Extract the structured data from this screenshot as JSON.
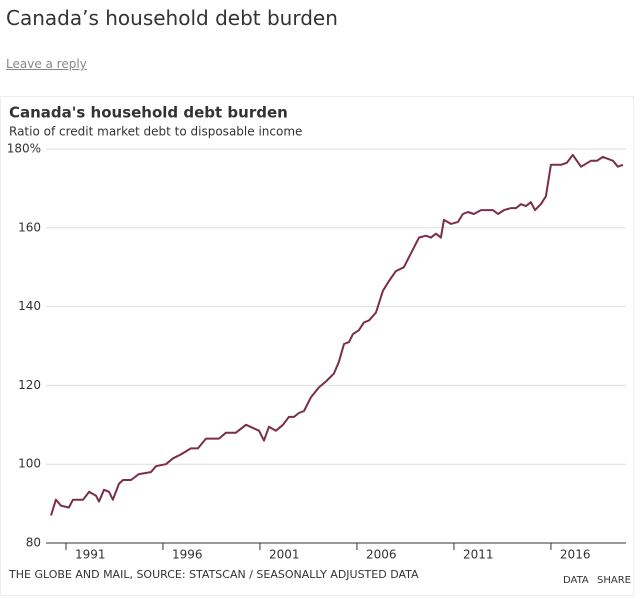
{
  "page": {
    "title": "Canada’s household debt burden",
    "link": "Leave a reply"
  },
  "chart_data": {
    "type": "line",
    "title": "Canada's household debt burden",
    "subtitle": "Ratio of credit market debt to disposable income",
    "source": "THE GLOBE AND MAIL, SOURCE: STATSCAN / SEASONALLY ADJUSTED DATA",
    "buttons": [
      "DATA",
      "SHARE"
    ],
    "x": [
      1990.23,
      1990.48,
      1990.74,
      1991.15,
      1991.36,
      1991.88,
      1992.19,
      1992.55,
      1992.7,
      1992.96,
      1993.22,
      1993.42,
      1993.73,
      1993.94,
      1994.35,
      1994.76,
      1995.38,
      1995.64,
      1996.15,
      1996.52,
      1996.93,
      1997.44,
      1997.8,
      1998.22,
      1998.63,
      1998.89,
      1999.25,
      1999.76,
      2000.28,
      2000.95,
      2001.21,
      2001.46,
      2001.82,
      2002.19,
      2002.49,
      2002.75,
      2003.01,
      2003.27,
      2003.63,
      2004.04,
      2004.4,
      2004.81,
      2005.07,
      2005.33,
      2005.59,
      2005.79,
      2006.1,
      2006.36,
      2006.62,
      2006.98,
      2007.34,
      2007.65,
      2008.01,
      2008.42,
      2008.78,
      2009.2,
      2009.56,
      2009.81,
      2010.07,
      2010.33,
      2010.48,
      2010.85,
      2011.21,
      2011.46,
      2011.72,
      2012.03,
      2012.39,
      2012.75,
      2013.01,
      2013.27,
      2013.58,
      2013.94,
      2014.2,
      2014.45,
      2014.71,
      2014.97,
      2015.18,
      2015.48,
      2015.74,
      2016.0,
      2016.52,
      2016.82,
      2017.13,
      2017.55,
      2018.06,
      2018.37,
      2018.68,
      2019.2,
      2019.45,
      2019.71
    ],
    "series": [
      {
        "name": "Debt to disposable income",
        "color": "#7b2d4a",
        "values": [
          87,
          91,
          89.5,
          89,
          91,
          91,
          93,
          92,
          90.5,
          93.5,
          93,
          91,
          95,
          96,
          96,
          97.5,
          98,
          99.5,
          100,
          101.5,
          102.5,
          104,
          104,
          106.5,
          106.5,
          106.5,
          108,
          108,
          110,
          108.5,
          106,
          109.5,
          108.5,
          110,
          112,
          112,
          113,
          113.5,
          117,
          119.5,
          121,
          123,
          126,
          130.5,
          131,
          133,
          134,
          136,
          136.5,
          138.5,
          144,
          146.5,
          149,
          150,
          153.5,
          157.5,
          158,
          157.5,
          158.5,
          157.5,
          162,
          161,
          161.5,
          163.5,
          164,
          163.5,
          164.5,
          164.5,
          164.5,
          163.5,
          164.5,
          165,
          165,
          166,
          165.5,
          166.5,
          164.5,
          166,
          168,
          176,
          176,
          176.5,
          178.5,
          175.5,
          177,
          177,
          178,
          177,
          175.5,
          176
        ]
      }
    ],
    "xlim": [
      1989.97,
      2019.87
    ],
    "ylim": [
      80,
      180
    ],
    "xticks": [
      1991,
      1996,
      2001,
      2006,
      2011,
      2016
    ],
    "yticks": [
      80,
      100,
      120,
      140,
      160,
      {
        "value": 180,
        "label": "180%"
      }
    ],
    "grid": true
  }
}
